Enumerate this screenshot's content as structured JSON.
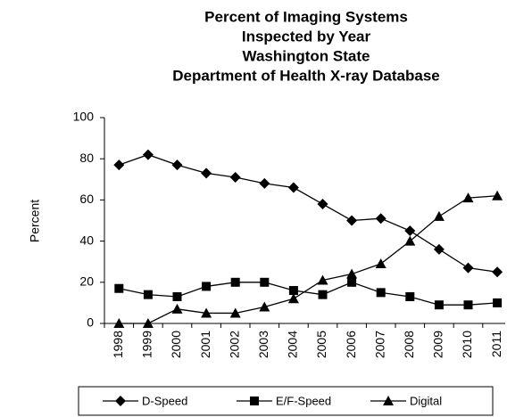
{
  "chart_data": {
    "type": "line",
    "title": [
      "Percent of Imaging Systems",
      "Inspected by Year",
      "Washington State",
      "Department of Health X-ray Database"
    ],
    "y_label": "Percent",
    "categories": [
      "1998",
      "1999",
      "2000",
      "2001",
      "2002",
      "2003",
      "2004",
      "2005",
      "2006",
      "2007",
      "2008",
      "2009",
      "2010",
      "2011"
    ],
    "series": [
      {
        "name": "D-Speed",
        "color": "#000000",
        "marker": "diamond",
        "values": [
          77,
          82,
          77,
          73,
          71,
          68,
          66,
          58,
          50,
          51,
          45,
          36,
          27,
          25
        ]
      },
      {
        "name": "E/F-Speed",
        "color": "#000000",
        "marker": "square",
        "values": [
          17,
          14,
          13,
          18,
          20,
          20,
          16,
          14,
          20,
          15,
          13,
          9,
          9,
          10
        ]
      },
      {
        "name": "Digital",
        "color": "#000000",
        "marker": "triangle",
        "values": [
          0,
          0,
          7,
          5,
          5,
          8,
          12,
          21,
          24,
          29,
          40,
          52,
          61,
          62
        ]
      }
    ],
    "ylim": [
      0,
      100
    ],
    "yticks": [
      0,
      20,
      40,
      60,
      80,
      100
    ],
    "grid": false,
    "legend": "bottom"
  }
}
